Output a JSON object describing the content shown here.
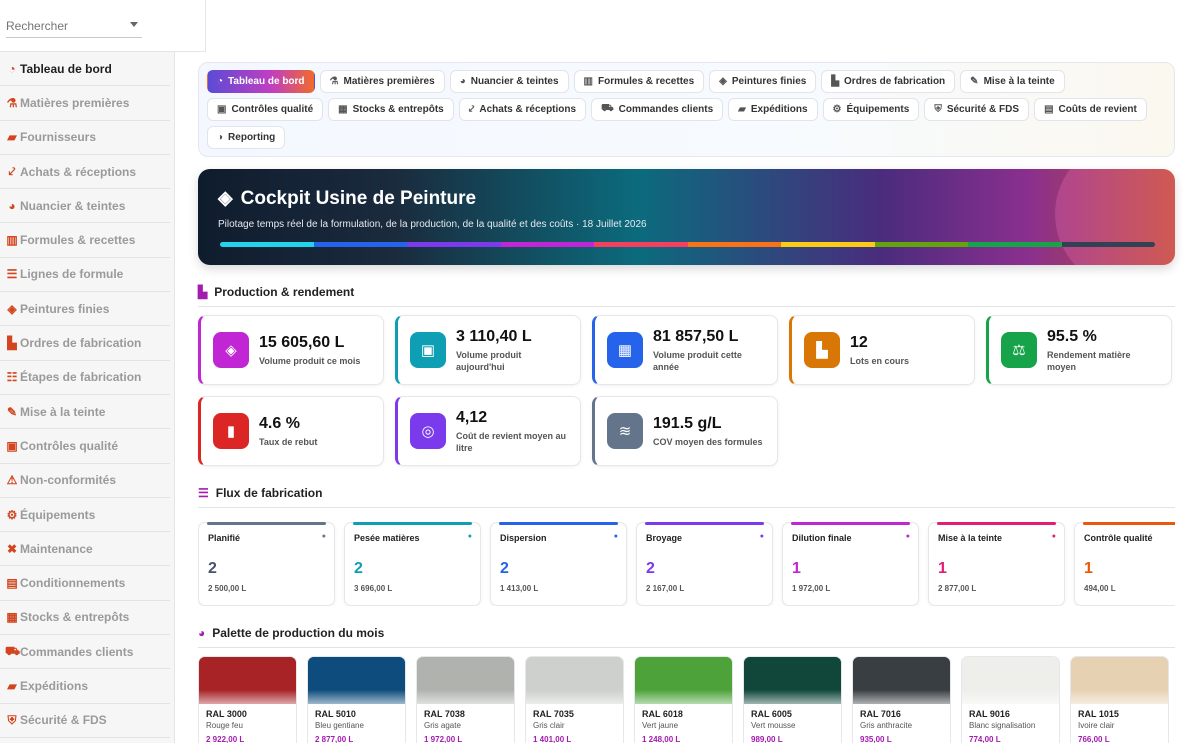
{
  "search": {
    "placeholder": "Rechercher"
  },
  "sidebar": {
    "items": [
      {
        "label": "Tableau de bord",
        "icon": "gauge-icon",
        "glyph": "◔",
        "active": true
      },
      {
        "label": "Matières premières",
        "icon": "flask-icon",
        "glyph": "⚗",
        "active": false
      },
      {
        "label": "Fournisseurs",
        "icon": "truck-icon",
        "glyph": "▰",
        "active": false
      },
      {
        "label": "Achats & réceptions",
        "icon": "dolly-icon",
        "glyph": "⤦",
        "active": false
      },
      {
        "label": "Nuancier & teintes",
        "icon": "palette-icon",
        "glyph": "◕",
        "active": false
      },
      {
        "label": "Formules & recettes",
        "icon": "recipe-icon",
        "glyph": "▥",
        "active": false
      },
      {
        "label": "Lignes de formule",
        "icon": "list-icon",
        "glyph": "☰",
        "active": false
      },
      {
        "label": "Peintures finies",
        "icon": "paint-bucket-icon",
        "glyph": "◈",
        "active": false
      },
      {
        "label": "Ordres de fabrication",
        "icon": "factory-icon",
        "glyph": "▙",
        "active": false
      },
      {
        "label": "Étapes de fabrication",
        "icon": "list-steps-icon",
        "glyph": "☷",
        "active": false
      },
      {
        "label": "Mise à la teinte",
        "icon": "eyedropper-icon",
        "glyph": "✎",
        "active": false
      },
      {
        "label": "Contrôles qualité",
        "icon": "clipboard-check-icon",
        "glyph": "▣",
        "active": false
      },
      {
        "label": "Non-conformités",
        "icon": "warning-icon",
        "glyph": "⚠",
        "active": false
      },
      {
        "label": "Équipements",
        "icon": "gears-icon",
        "glyph": "⚙",
        "active": false
      },
      {
        "label": "Maintenance",
        "icon": "tools-icon",
        "glyph": "✖",
        "active": false
      },
      {
        "label": "Conditionnements",
        "icon": "box-icon",
        "glyph": "▤",
        "active": false
      },
      {
        "label": "Stocks & entrepôts",
        "icon": "warehouse-icon",
        "glyph": "▦",
        "active": false
      },
      {
        "label": "Commandes clients",
        "icon": "cart-icon",
        "glyph": "⛟",
        "active": false
      },
      {
        "label": "Expéditions",
        "icon": "shipping-truck-icon",
        "glyph": "▰",
        "active": false
      },
      {
        "label": "Sécurité & FDS",
        "icon": "shield-icon",
        "glyph": "⛨",
        "active": false
      }
    ]
  },
  "tabs": [
    {
      "label": "Tableau de bord",
      "icon": "gauge-icon",
      "glyph": "◔",
      "active": true
    },
    {
      "label": "Matières premières",
      "icon": "flask-icon",
      "glyph": "⚗",
      "active": false
    },
    {
      "label": "Nuancier & teintes",
      "icon": "palette-icon",
      "glyph": "◕",
      "active": false
    },
    {
      "label": "Formules & recettes",
      "icon": "recipe-icon",
      "glyph": "▥",
      "active": false
    },
    {
      "label": "Peintures finies",
      "icon": "paint-bucket-icon",
      "glyph": "◈",
      "active": false
    },
    {
      "label": "Ordres de fabrication",
      "icon": "factory-icon",
      "glyph": "▙",
      "active": false
    },
    {
      "label": "Mise à la teinte",
      "icon": "eyedropper-icon",
      "glyph": "✎",
      "active": false
    },
    {
      "label": "Contrôles qualité",
      "icon": "clipboard-check-icon",
      "glyph": "▣",
      "active": false
    },
    {
      "label": "Stocks & entrepôts",
      "icon": "warehouse-icon",
      "glyph": "▦",
      "active": false
    },
    {
      "label": "Achats & réceptions",
      "icon": "dolly-icon",
      "glyph": "⤦",
      "active": false
    },
    {
      "label": "Commandes clients",
      "icon": "cart-icon",
      "glyph": "⛟",
      "active": false
    },
    {
      "label": "Expéditions",
      "icon": "shipping-truck-icon",
      "glyph": "▰",
      "active": false
    },
    {
      "label": "Équipements",
      "icon": "gears-icon",
      "glyph": "⚙",
      "active": false
    },
    {
      "label": "Sécurité & FDS",
      "icon": "shield-icon",
      "glyph": "⛨",
      "active": false
    },
    {
      "label": "Coûts de revient",
      "icon": "money-icon",
      "glyph": "▤",
      "active": false
    },
    {
      "label": "Reporting",
      "icon": "pie-chart-icon",
      "glyph": "◑",
      "active": false
    }
  ],
  "hero": {
    "title": "Cockpit Usine de Peinture",
    "icon": "paint-bucket-icon",
    "subtitle": "Pilotage temps réel de la formulation, de la production, de la qualité et des coûts · 18 Juillet 2026",
    "bar_colors": [
      "#22d3ee",
      "#2563eb",
      "#7c3aed",
      "#c026d3",
      "#f43f5e",
      "#f97316",
      "#facc15",
      "#65a30d",
      "#16a34a",
      "#334155"
    ]
  },
  "production": {
    "title": "Production & rendement",
    "icon": "factory-icon",
    "kpis": [
      {
        "value": "15 605,60 L",
        "label": "Volume produit ce mois",
        "icon": "paint-bucket-icon",
        "glyph": "◈",
        "color": "#c026d3"
      },
      {
        "value": "3 110,40 L",
        "label": "Volume produit aujourd'hui",
        "icon": "calendar-day-icon",
        "glyph": "▣",
        "color": "#0e9fb4"
      },
      {
        "value": "81 857,50 L",
        "label": "Volume produit cette année",
        "icon": "calendar-icon",
        "glyph": "▦",
        "color": "#2563eb"
      },
      {
        "value": "12",
        "label": "Lots en cours",
        "icon": "factory-icon",
        "glyph": "▙",
        "color": "#d97706"
      },
      {
        "value": "95.5 %",
        "label": "Rendement matière moyen",
        "icon": "scale-icon",
        "glyph": "⚖",
        "color": "#16a34a"
      },
      {
        "value": "4.6 %",
        "label": "Taux de rebut",
        "icon": "trash-icon",
        "glyph": "▮",
        "color": "#dc2626"
      },
      {
        "value": "4,12",
        "label": "Coût de revient moyen au litre",
        "icon": "coins-icon",
        "glyph": "◎",
        "color": "#7c3aed"
      },
      {
        "value": "191.5 g/L",
        "label": "COV moyen des formules",
        "icon": "wind-icon",
        "glyph": "≋",
        "color": "#64748b"
      }
    ]
  },
  "flux": {
    "title": "Flux de fabrication",
    "icon": "list-steps-icon",
    "steps": [
      {
        "name": "Planifié",
        "count": "2",
        "volume": "2 500,00 L",
        "color": "#64748b",
        "count_color": "#475569"
      },
      {
        "name": "Pesée matières",
        "count": "2",
        "volume": "3 696,00 L",
        "color": "#0e9fb4",
        "count_color": "#0e9fb4"
      },
      {
        "name": "Dispersion",
        "count": "2",
        "volume": "1 413,00 L",
        "color": "#2563eb",
        "count_color": "#2563eb"
      },
      {
        "name": "Broyage",
        "count": "2",
        "volume": "2 167,00 L",
        "color": "#7c3aed",
        "count_color": "#7c3aed"
      },
      {
        "name": "Dilution finale",
        "count": "1",
        "volume": "1 972,00 L",
        "color": "#c026d3",
        "count_color": "#c026d3"
      },
      {
        "name": "Mise à la teinte",
        "count": "1",
        "volume": "2 877,00 L",
        "color": "#e11d74",
        "count_color": "#e11d74"
      },
      {
        "name": "Contrôle qualité",
        "count": "1",
        "volume": "494,00 L",
        "color": "#ea580c",
        "count_color": "#ea580c"
      }
    ]
  },
  "palette": {
    "title": "Palette de production du mois",
    "icon": "palette-icon",
    "swatches": [
      {
        "code": "RAL 3000",
        "name": "Rouge feu",
        "volume": "2 922,00 L",
        "color": "#a82326"
      },
      {
        "code": "RAL 5010",
        "name": "Bleu gentiane",
        "volume": "2 877,00 L",
        "color": "#0e4c7d"
      },
      {
        "code": "RAL 7038",
        "name": "Gris agate",
        "volume": "1 972,00 L",
        "color": "#b0b3ad"
      },
      {
        "code": "RAL 7035",
        "name": "Gris clair",
        "volume": "1 401,00 L",
        "color": "#cdd0cd"
      },
      {
        "code": "RAL 6018",
        "name": "Vert jaune",
        "volume": "1 248,00 L",
        "color": "#4da33a"
      },
      {
        "code": "RAL 6005",
        "name": "Vert mousse",
        "volume": "989,00 L",
        "color": "#10473a"
      },
      {
        "code": "RAL 7016",
        "name": "Gris anthracite",
        "volume": "935,00 L",
        "color": "#383e42"
      },
      {
        "code": "RAL 9016",
        "name": "Blanc signalisation",
        "volume": "774,00 L",
        "color": "#eeeeea"
      },
      {
        "code": "RAL 1015",
        "name": "Ivoire clair",
        "volume": "766,00 L",
        "color": "#e6d2b3"
      }
    ]
  }
}
